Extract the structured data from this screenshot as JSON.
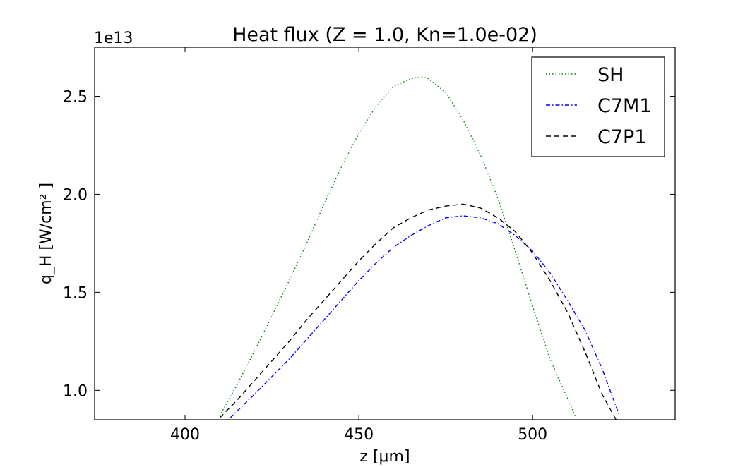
{
  "chart_data": {
    "type": "line",
    "title": "Heat flux (Z = 1.0, Kn=1.0e-02)",
    "xlabel": "z [μm]",
    "ylabel": "q_H  [W/cm² ]",
    "y_offset_label": "1e13",
    "y_scale": 10000000000000.0,
    "xlim": [
      374,
      541
    ],
    "ylim": [
      0.85,
      2.75
    ],
    "xticks": [
      400,
      450,
      500
    ],
    "xtick_labels": [
      "400",
      "450",
      "500"
    ],
    "yticks": [
      1.0,
      1.5,
      2.0,
      2.5
    ],
    "ytick_labels": [
      "1.0",
      "1.5",
      "2.0",
      "2.5"
    ],
    "grid": false,
    "legend_position": "top-right",
    "series": [
      {
        "name": "SH",
        "color": "#008000",
        "style": "dotted",
        "x": [
          410,
          415,
          420,
          425,
          430,
          435,
          440,
          445,
          450,
          455,
          460,
          465,
          468,
          470,
          475,
          480,
          485,
          490,
          495,
          500,
          505,
          510,
          512.5
        ],
        "y": [
          0.87,
          1.03,
          1.2,
          1.38,
          1.56,
          1.75,
          1.95,
          2.14,
          2.31,
          2.45,
          2.55,
          2.59,
          2.6,
          2.59,
          2.52,
          2.38,
          2.2,
          1.98,
          1.71,
          1.43,
          1.16,
          0.96,
          0.86
        ]
      },
      {
        "name": "C7M1",
        "color": "#0000ff",
        "style": "dashdot",
        "x": [
          413,
          420,
          425,
          430,
          435,
          440,
          445,
          450,
          455,
          460,
          465,
          470,
          475,
          480,
          485,
          490,
          495,
          500,
          505,
          510,
          515,
          520,
          525
        ],
        "y": [
          0.86,
          0.98,
          1.07,
          1.16,
          1.26,
          1.36,
          1.46,
          1.56,
          1.65,
          1.73,
          1.79,
          1.84,
          1.88,
          1.89,
          1.88,
          1.85,
          1.79,
          1.71,
          1.6,
          1.46,
          1.31,
          1.11,
          0.87
        ]
      },
      {
        "name": "C7P1",
        "color": "#000000",
        "style": "dashed",
        "x": [
          410,
          415,
          420,
          425,
          430,
          435,
          440,
          445,
          450,
          455,
          460,
          465,
          470,
          475,
          480,
          485,
          490,
          495,
          500,
          505,
          510,
          515,
          520,
          524
        ],
        "y": [
          0.86,
          0.95,
          1.05,
          1.15,
          1.25,
          1.36,
          1.46,
          1.56,
          1.66,
          1.75,
          1.83,
          1.88,
          1.92,
          1.94,
          1.95,
          1.93,
          1.88,
          1.81,
          1.7,
          1.56,
          1.4,
          1.2,
          0.98,
          0.85
        ]
      }
    ]
  }
}
